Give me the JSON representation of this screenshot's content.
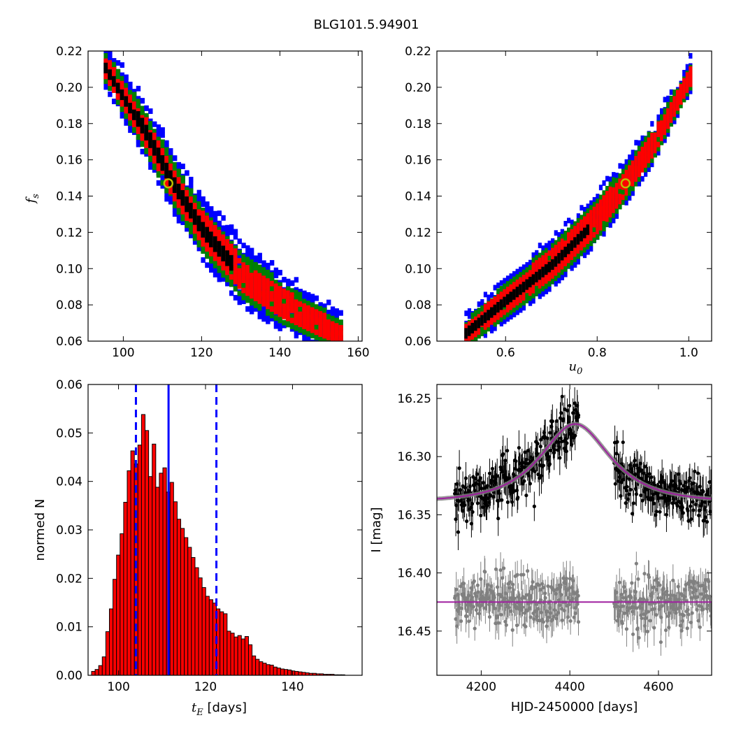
{
  "figure": {
    "title": "BLG101.5.94901"
  },
  "colors": {
    "black": "#000000",
    "red": "#ff0000",
    "green": "#008000",
    "blue": "#0000ff",
    "marker_edge": "#bfbf00",
    "model": "#a020a0",
    "residual": "#808080",
    "bar": "#ff0000"
  },
  "chart_data": [
    {
      "id": "te-fs",
      "type": "heatmap",
      "xlabel": "",
      "ylabel": "f_s",
      "ylabel_main": "f",
      "ylabel_sub": "s",
      "xlim": [
        91,
        161
      ],
      "ylim": [
        0.06,
        0.22
      ],
      "xticks": [
        100,
        120,
        140,
        160
      ],
      "xtick_labels": [
        "100",
        "120",
        "140",
        "160"
      ],
      "yticks": [
        0.06,
        0.08,
        0.1,
        0.12,
        0.14,
        0.16,
        0.18,
        0.2,
        0.22
      ],
      "ytick_labels": [
        "0.06",
        "0.08",
        "0.10",
        "0.12",
        "0.14",
        "0.16",
        "0.18",
        "0.20",
        "0.22"
      ],
      "levels": [
        "blue",
        "green",
        "red",
        "black"
      ],
      "ridge": [
        [
          95,
          0.21
        ],
        [
          105,
          0.175
        ],
        [
          112,
          0.147
        ],
        [
          120,
          0.12
        ],
        [
          130,
          0.095
        ],
        [
          140,
          0.08
        ],
        [
          150,
          0.068
        ],
        [
          155,
          0.063
        ]
      ],
      "best_fit": [
        111.5,
        0.147
      ]
    },
    {
      "id": "u0-fs",
      "type": "heatmap",
      "xlabel": "u_0",
      "xlabel_main": "u",
      "xlabel_sub": "0",
      "ylabel": "",
      "xlim": [
        0.45,
        1.05
      ],
      "ylim": [
        0.06,
        0.22
      ],
      "xticks": [
        0.6,
        0.8,
        1.0
      ],
      "xtick_labels": [
        "0.6",
        "0.8",
        "1.0"
      ],
      "yticks": [
        0.06,
        0.08,
        0.1,
        0.12,
        0.14,
        0.16,
        0.18,
        0.2,
        0.22
      ],
      "ytick_labels": [
        "0.06",
        "0.08",
        "0.10",
        "0.12",
        "0.14",
        "0.16",
        "0.18",
        "0.20",
        "0.22"
      ],
      "levels": [
        "blue",
        "green",
        "red",
        "black"
      ],
      "ridge": [
        [
          0.51,
          0.063
        ],
        [
          0.6,
          0.082
        ],
        [
          0.7,
          0.102
        ],
        [
          0.8,
          0.127
        ],
        [
          0.86,
          0.147
        ],
        [
          0.92,
          0.168
        ],
        [
          1.0,
          0.205
        ]
      ],
      "best_fit": [
        0.862,
        0.147
      ]
    },
    {
      "id": "te-hist",
      "type": "bar",
      "xlabel": "t_E  [days]",
      "xlabel_main": "t",
      "xlabel_sub": "E",
      "xlabel_rest": " [days]",
      "ylabel": "normed N",
      "xlim": [
        93,
        156
      ],
      "ylim": [
        0.0,
        0.06
      ],
      "xticks": [
        100,
        120,
        140
      ],
      "xtick_labels": [
        "100",
        "120",
        "140"
      ],
      "yticks": [
        0.0,
        0.01,
        0.02,
        0.03,
        0.04,
        0.05,
        0.06
      ],
      "ytick_labels": [
        "0.00",
        "0.01",
        "0.02",
        "0.03",
        "0.04",
        "0.05",
        "0.06"
      ],
      "bin_start": 93.8,
      "bin_width": 0.82,
      "values": [
        0.0008,
        0.0012,
        0.002,
        0.0038,
        0.009,
        0.0137,
        0.0198,
        0.0248,
        0.0292,
        0.0357,
        0.0422,
        0.0463,
        0.0436,
        0.0475,
        0.0538,
        0.0505,
        0.041,
        0.0477,
        0.0388,
        0.0417,
        0.0428,
        0.0378,
        0.0398,
        0.0358,
        0.0322,
        0.0303,
        0.0284,
        0.0264,
        0.0243,
        0.0222,
        0.0201,
        0.0181,
        0.0163,
        0.0156,
        0.0149,
        0.0137,
        0.0131,
        0.0127,
        0.0091,
        0.0087,
        0.0079,
        0.0082,
        0.0075,
        0.008,
        0.0063,
        0.004,
        0.0033,
        0.0028,
        0.0025,
        0.0022,
        0.0021,
        0.0017,
        0.0015,
        0.0013,
        0.0012,
        0.0011,
        0.0009,
        0.0008,
        0.0007,
        0.0006,
        0.0005,
        0.0004,
        0.0004,
        0.0003,
        0.0003,
        0.0002,
        0.0002,
        0.0002,
        0.0001,
        0.0001,
        0.0001
      ],
      "median": 111.5,
      "interval": [
        104.0,
        122.5
      ]
    },
    {
      "id": "lightcurve",
      "type": "scatter",
      "xlabel": "HJD-2450000 [days]",
      "ylabel": "I [mag]",
      "xlim": [
        4100,
        4720
      ],
      "ylim": [
        16.488,
        16.238
      ],
      "y_inverted": true,
      "xticks": [
        4200,
        4400,
        4600
      ],
      "xtick_labels": [
        "4200",
        "4400",
        "4600"
      ],
      "yticks": [
        16.25,
        16.3,
        16.35,
        16.4,
        16.45
      ],
      "ytick_labels": [
        "16.25",
        "16.30",
        "16.35",
        "16.40",
        "16.45"
      ],
      "model": {
        "t0": 4412,
        "tE": 111.5,
        "u0": 0.862,
        "fs": 0.147,
        "base": 16.339,
        "peak": 16.272
      },
      "residual_baseline": 16.425,
      "observing_seasons": [
        [
          4140,
          4420
        ],
        [
          4500,
          4720
        ]
      ]
    }
  ]
}
